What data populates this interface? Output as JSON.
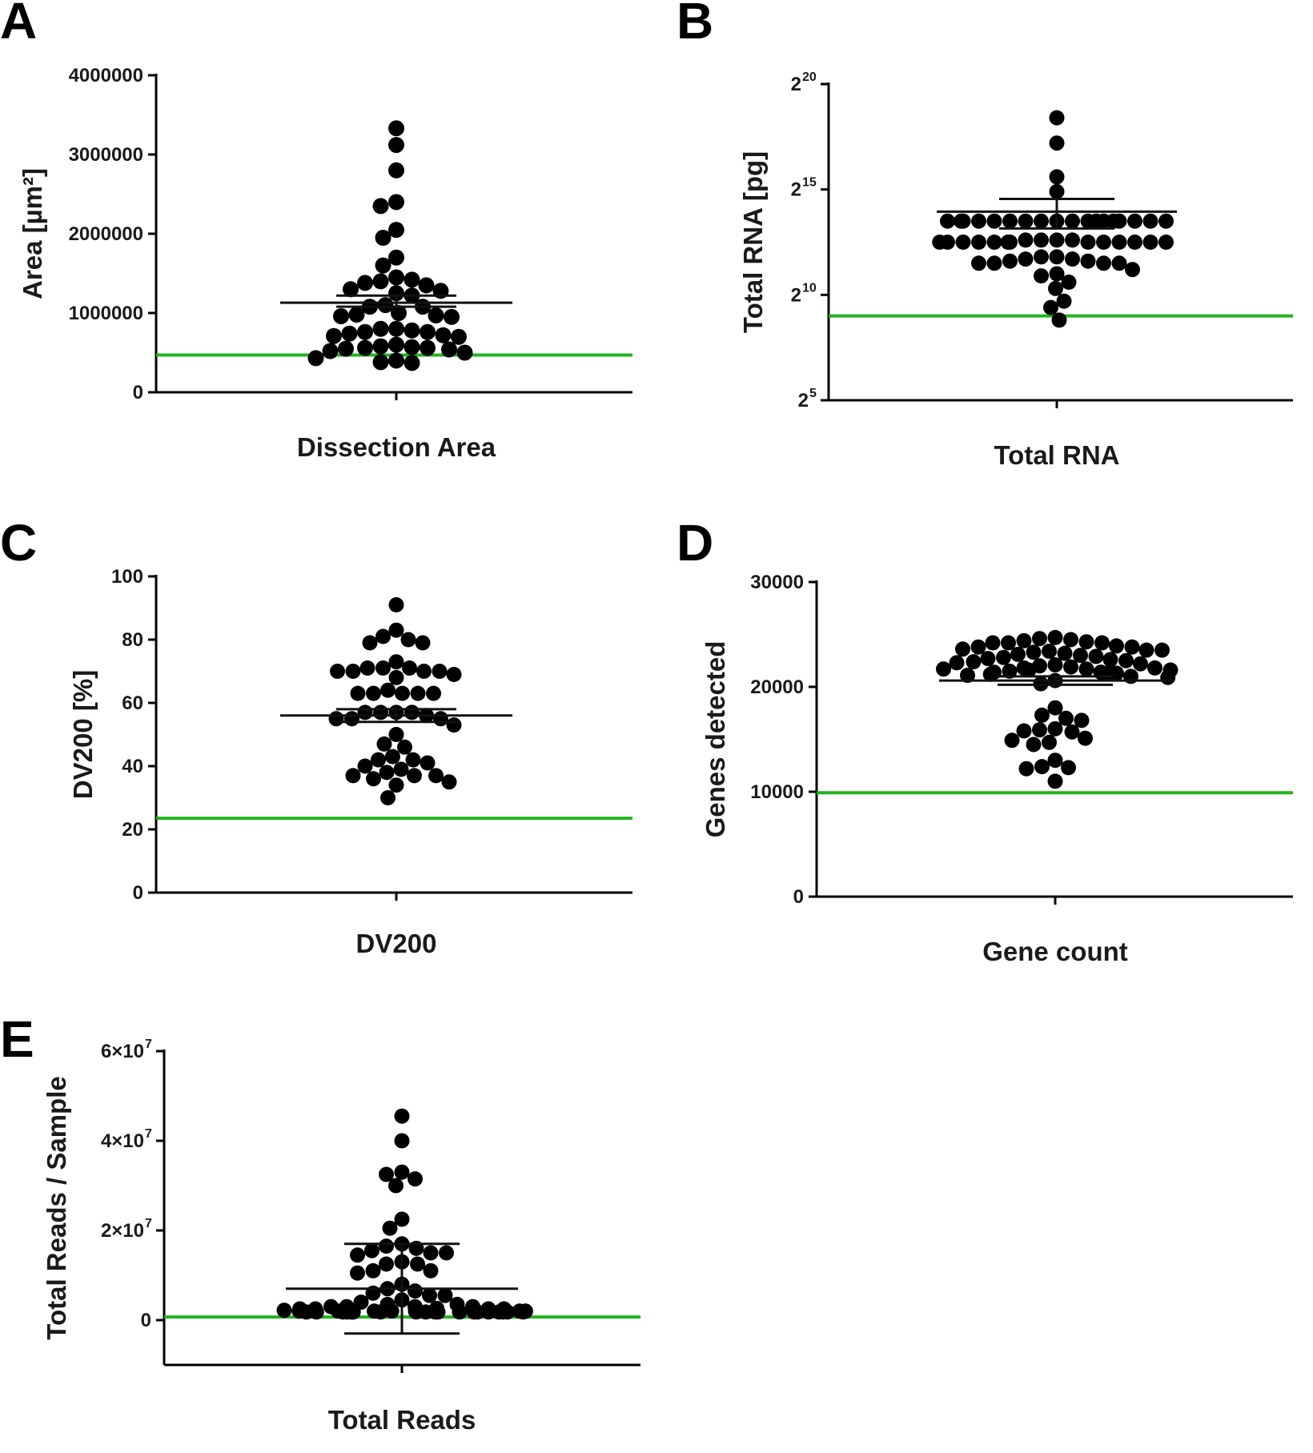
{
  "colors": {
    "threshold": "#22b41c",
    "points": "#000000",
    "axes": "#000000"
  },
  "chart_data": [
    {
      "panel": "A",
      "type": "scatter",
      "scale": "linear",
      "ylabel": "Area [µm²]",
      "xlabel": "Dissection Area",
      "ylim": [
        0,
        4000000
      ],
      "ytick_values": [
        0,
        1000000,
        2000000,
        3000000,
        4000000
      ],
      "ytick_labels": [
        "0",
        "1000000",
        "2000000",
        "3000000",
        "4000000"
      ],
      "threshold": 470000,
      "mean": 1130000,
      "sem_low": 1080000,
      "sem_high": 1220000,
      "values": [
        3330000,
        3120000,
        2800000,
        2400000,
        2350000,
        2050000,
        1950000,
        1700000,
        1600000,
        1450000,
        1420000,
        1400000,
        1380000,
        1350000,
        1300000,
        1280000,
        1250000,
        1220000,
        1100000,
        1080000,
        1080000,
        1000000,
        980000,
        970000,
        960000,
        950000,
        800000,
        800000,
        780000,
        760000,
        760000,
        740000,
        720000,
        710000,
        700000,
        600000,
        580000,
        570000,
        560000,
        560000,
        550000,
        540000,
        520000,
        500000,
        430000,
        400000,
        380000,
        370000
      ]
    },
    {
      "panel": "B",
      "type": "scatter",
      "scale": "log2",
      "ylabel": "Total RNA [pg]",
      "xlabel": "Total RNA",
      "ylim": [
        5,
        20
      ],
      "ytick_values": [
        5,
        10,
        15,
        20
      ],
      "ytick_labels": [
        "2",
        "2",
        "2",
        "2"
      ],
      "ytick_exponents": [
        "5",
        "10",
        "15",
        "20"
      ],
      "threshold_log2": 9.0,
      "mean_log2": 13.95,
      "sem_low_log2": 13.15,
      "sem_high_log2": 14.55,
      "values_log2": [
        18.4,
        17.2,
        15.6,
        14.9,
        13.5,
        13.5,
        13.5,
        13.5,
        13.5,
        13.5,
        13.5,
        13.5,
        13.5,
        13.5,
        13.5,
        13.5,
        13.5,
        13.5,
        13.5,
        13.5,
        13.5,
        13.5,
        12.6,
        12.6,
        12.6,
        12.6,
        12.5,
        12.5,
        12.5,
        12.5,
        12.5,
        12.5,
        12.5,
        12.5,
        12.5,
        12.5,
        12.5,
        12.5,
        12.5,
        11.8,
        11.7,
        11.6,
        11.5,
        11.5,
        11.5,
        11.5,
        11.6,
        11.7,
        11.8,
        11.2,
        11.0,
        10.9,
        10.6,
        10.3,
        9.7,
        9.4,
        8.8
      ]
    },
    {
      "panel": "C",
      "type": "scatter",
      "scale": "linear",
      "ylabel": "DV200 [%]",
      "xlabel": "DV200",
      "ylim": [
        0,
        100
      ],
      "ytick_values": [
        0,
        20,
        40,
        60,
        80,
        100
      ],
      "ytick_labels": [
        "0",
        "20",
        "40",
        "60",
        "80",
        "100"
      ],
      "threshold": 23.5,
      "mean": 56,
      "sem_low": 54,
      "sem_high": 58,
      "values": [
        91,
        83,
        81,
        80,
        79,
        79,
        73,
        71,
        71,
        71,
        70,
        70,
        70,
        70,
        69,
        68,
        64,
        63,
        63,
        63,
        63,
        63,
        57,
        57,
        57,
        57,
        56,
        55,
        55,
        55,
        53,
        50,
        47,
        46,
        43,
        42,
        42,
        41,
        40,
        39,
        38,
        37,
        37,
        37,
        36,
        35,
        34,
        30
      ]
    },
    {
      "panel": "D",
      "type": "scatter",
      "scale": "linear",
      "ylabel": "Genes detected",
      "xlabel": "Gene count",
      "ylim": [
        0,
        30000
      ],
      "ytick_values": [
        0,
        10000,
        20000,
        30000
      ],
      "ytick_labels": [
        "0",
        "10000",
        "20000",
        "30000"
      ],
      "threshold": 9900,
      "mean": 20600,
      "sem_low": 20200,
      "sem_high": 21000,
      "values": [
        24700,
        24600,
        24500,
        24400,
        24300,
        24200,
        24200,
        24200,
        23900,
        23800,
        23800,
        23600,
        23500,
        23500,
        23400,
        23300,
        23200,
        23100,
        23000,
        22900,
        22800,
        22700,
        22600,
        22500,
        22400,
        22300,
        22200,
        22100,
        22000,
        21900,
        21800,
        21800,
        21700,
        21700,
        21600,
        21600,
        21500,
        21400,
        21400,
        21300,
        21300,
        21200,
        21100,
        21000,
        20900,
        20600,
        20300,
        18000,
        17300,
        17000,
        16800,
        16000,
        15900,
        15800,
        15700,
        15100,
        14900,
        14700,
        14500,
        13000,
        12400,
        12300,
        12200,
        11000
      ]
    },
    {
      "panel": "E",
      "type": "scatter",
      "scale": "linear",
      "ylabel": "Total Reads / Sample",
      "xlabel": "Total Reads",
      "ylim": [
        -10000000,
        60000000
      ],
      "ytick_values": [
        0,
        20000000,
        40000000,
        60000000
      ],
      "ytick_labels": [
        "0",
        "2×10",
        "4×10",
        "6×10"
      ],
      "ytick_exponents": [
        "",
        "7",
        "7",
        "7"
      ],
      "threshold": 700000,
      "mean": 7000000,
      "sem_low": -3000000,
      "sem_high": 17000000,
      "values": [
        45500000,
        40000000,
        33000000,
        32500000,
        31500000,
        30000000,
        22500000,
        20500000,
        17000000,
        16500000,
        16000000,
        15500000,
        15000000,
        15000000,
        14500000,
        13000000,
        12500000,
        12500000,
        11000000,
        11000000,
        10500000,
        8000000,
        7000000,
        6500000,
        6000000,
        5500000,
        5500000,
        4500000,
        4000000,
        3500000,
        3500000,
        3000000,
        3000000,
        3000000,
        2500000,
        2500000,
        2500000,
        2500000,
        2000000,
        2000000,
        2000000,
        2000000,
        2000000,
        2000000,
        2000000,
        1800000,
        1800000,
        1800000,
        1800000,
        1800000,
        1800000,
        1800000,
        1800000,
        1800000,
        1800000,
        1800000,
        1800000,
        1800000,
        1800000,
        1800000,
        1800000,
        1800000,
        1800000,
        1800000,
        1800000,
        2000000,
        2200000,
        2600000,
        3000000
      ]
    }
  ]
}
